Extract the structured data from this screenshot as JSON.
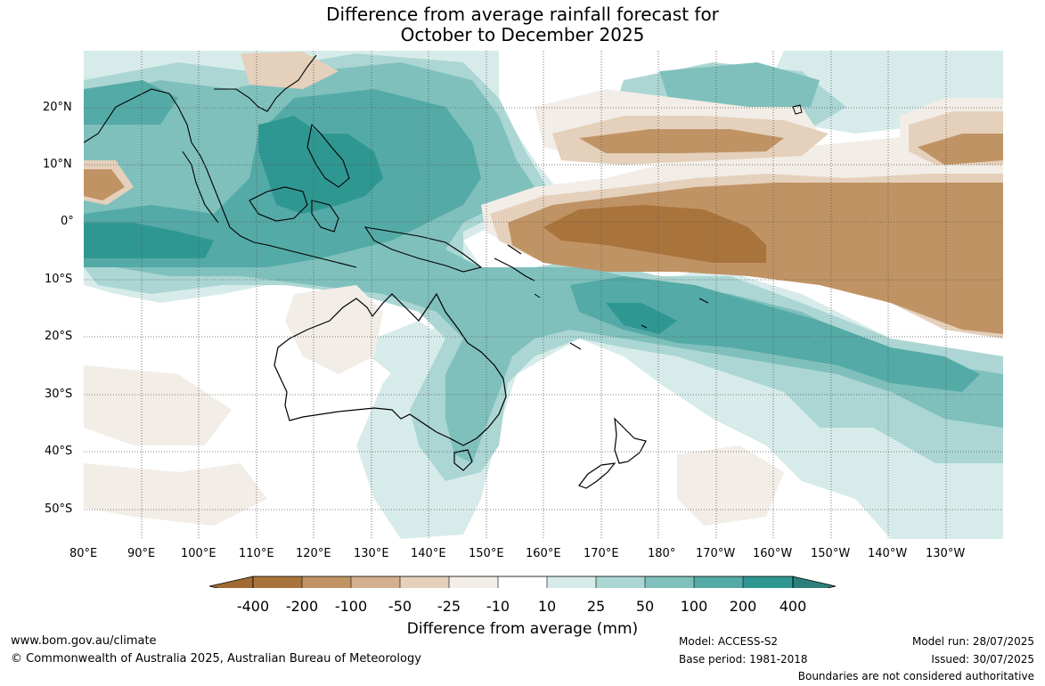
{
  "title": {
    "line1": "Difference from average rainfall forecast for",
    "line2": "October to December 2025"
  },
  "map": {
    "lon_labels": [
      "80°E",
      "90°E",
      "100°E",
      "110°E",
      "120°E",
      "130°E",
      "140°E",
      "150°E",
      "160°E",
      "170°E",
      "180°",
      "170°W",
      "160°W",
      "150°W",
      "140°W",
      "130°W"
    ],
    "lat_labels": [
      "20°N",
      "10°N",
      "0°",
      "10°S",
      "20°S",
      "30°S",
      "40°S",
      "50°S"
    ],
    "extent": {
      "lon_min": 80,
      "lon_max": 240,
      "lat_min": -55,
      "lat_max": 30
    }
  },
  "colorbar": {
    "title": "Difference from average (mm)",
    "tick_labels": [
      "-400",
      "-200",
      "-100",
      "-50",
      "-25",
      "-10",
      "10",
      "25",
      "50",
      "100",
      "200",
      "400"
    ],
    "colors": [
      "#a16a33",
      "#a9743c",
      "#c09364",
      "#d3b08e",
      "#e4d0bb",
      "#f2ede6",
      "#ffffff",
      "#d7ecea",
      "#abd6d3",
      "#7fc0bc",
      "#54aaa6",
      "#2f9792",
      "#2c7f7c"
    ]
  },
  "footer": {
    "website": "www.bom.gov.au/climate",
    "copyright": "© Commonwealth of Australia 2025, Australian Bureau of Meteorology",
    "model": "Model: ACCESS-S2",
    "base_period": "Base period: 1981-2018",
    "model_run": "Model run: 28/07/2025",
    "issued": "Issued: 30/07/2025",
    "disclaimer": "Boundaries are not considered authoritative"
  }
}
